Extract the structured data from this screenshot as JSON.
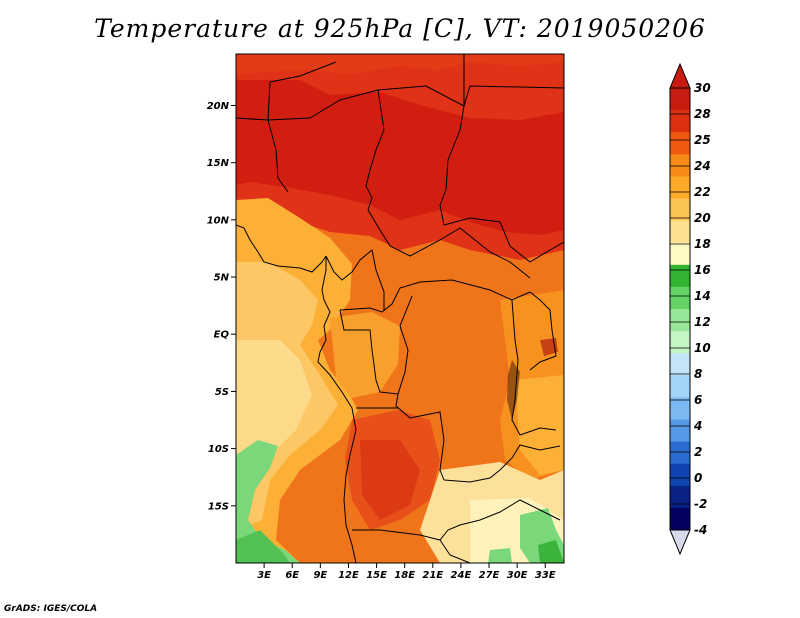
{
  "title": "Temperature at 925hPa [C], VT: 2019050206",
  "credit": "GrADS: IGES/COLA",
  "map": {
    "lon_range": [
      0,
      35
    ],
    "lat_range": [
      -20,
      24.5
    ],
    "lat_ticks": [
      {
        "value": 20,
        "label": "20N"
      },
      {
        "value": 15,
        "label": "15N"
      },
      {
        "value": 10,
        "label": "10N"
      },
      {
        "value": 5,
        "label": "5N"
      },
      {
        "value": 0,
        "label": "EQ"
      },
      {
        "value": -5,
        "label": "5S"
      },
      {
        "value": -10,
        "label": "10S"
      },
      {
        "value": -15,
        "label": "15S"
      }
    ],
    "lon_ticks": [
      {
        "value": 3,
        "label": "3E"
      },
      {
        "value": 6,
        "label": "6E"
      },
      {
        "value": 9,
        "label": "9E"
      },
      {
        "value": 12,
        "label": "12E"
      },
      {
        "value": 15,
        "label": "15E"
      },
      {
        "value": 18,
        "label": "18E"
      },
      {
        "value": 21,
        "label": "21E"
      },
      {
        "value": 24,
        "label": "24E"
      },
      {
        "value": 27,
        "label": "27E"
      },
      {
        "value": 30,
        "label": "30E"
      },
      {
        "value": 33,
        "label": "33E"
      }
    ]
  },
  "colorbar": {
    "labels": [
      "30",
      "28",
      "25",
      "24",
      "22",
      "20",
      "18",
      "16",
      "14",
      "12",
      "10",
      "8",
      "6",
      "4",
      "2",
      "0",
      "-2",
      "-4"
    ],
    "colors": [
      "#c81c10",
      "#e03012",
      "#f05a10",
      "#f88a18",
      "#fcaa28",
      "#fcc454",
      "#fde090",
      "#fefac4",
      "#32b432",
      "#64d264",
      "#98e698",
      "#c4f5c4",
      "#c4e4f8",
      "#a2d4f8",
      "#7cb8f2",
      "#5498e6",
      "#2a6cd0",
      "#1044b0",
      "#0a2286",
      "#040060"
    ],
    "top_color": "#c81c10",
    "bottom_color": "#d8d8ec"
  }
}
